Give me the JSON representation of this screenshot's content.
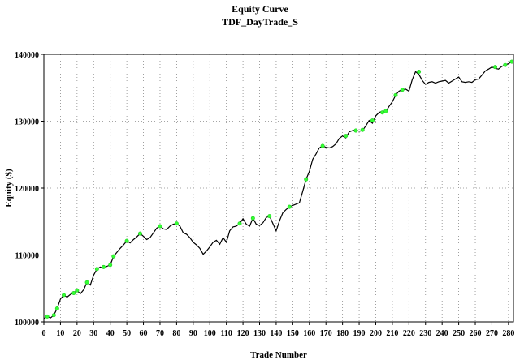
{
  "chart_data": {
    "type": "line",
    "title": "Equity Curve",
    "subtitle": "TDF_DayTrade_S",
    "xlabel": "Trade Number",
    "ylabel": "Equity ($)",
    "xlim": [
      0,
      283
    ],
    "ylim": [
      100000,
      140000
    ],
    "x_ticks": [
      0,
      10,
      20,
      30,
      40,
      50,
      60,
      70,
      80,
      90,
      100,
      110,
      120,
      130,
      140,
      150,
      160,
      170,
      180,
      190,
      200,
      210,
      220,
      230,
      240,
      250,
      260,
      270,
      280
    ],
    "y_ticks": [
      100000,
      110000,
      120000,
      130000,
      140000
    ],
    "grid": true,
    "line_color": "#000000",
    "marker_color": "#33ff33",
    "series": [
      {
        "x": [
          0,
          2,
          4,
          6,
          8,
          10,
          12,
          14,
          16,
          18,
          20,
          22,
          24,
          26,
          28,
          30,
          32,
          34,
          36,
          38,
          40,
          42,
          44,
          46,
          48,
          50,
          52,
          54,
          56,
          58,
          60,
          62,
          64,
          66,
          68,
          70,
          72,
          74,
          76,
          78,
          80,
          82,
          84,
          86,
          88,
          90,
          92,
          94,
          96,
          98,
          100,
          102,
          104,
          106,
          108,
          110,
          112,
          114,
          116,
          118,
          120,
          122,
          124,
          126,
          128,
          130,
          132,
          134,
          136,
          138,
          140,
          142,
          144,
          146,
          148,
          150,
          152,
          154,
          156,
          158,
          160,
          162,
          164,
          166,
          168,
          170,
          172,
          174,
          176,
          178,
          180,
          182,
          184,
          186,
          188,
          190,
          192,
          194,
          196,
          198,
          200,
          202,
          204,
          206,
          208,
          210,
          212,
          214,
          216,
          218,
          220,
          222,
          224,
          226,
          228,
          230,
          232,
          234,
          236,
          238,
          240,
          242,
          244,
          246,
          248,
          250,
          252,
          254,
          256,
          258,
          260,
          262,
          264,
          266,
          268,
          270,
          272,
          274,
          276,
          278,
          280,
          282
        ],
        "values": [
          100500,
          100800,
          100600,
          101000,
          102000,
          103400,
          104000,
          103700,
          104100,
          104300,
          104700,
          104200,
          104800,
          105900,
          105500,
          107000,
          107900,
          108200,
          108000,
          108300,
          108500,
          109800,
          110400,
          111000,
          111500,
          112100,
          111800,
          112300,
          112700,
          113200,
          112800,
          112300,
          112600,
          113300,
          114000,
          114300,
          113900,
          113800,
          114300,
          114600,
          114700,
          114300,
          113300,
          113100,
          112600,
          111900,
          111500,
          111000,
          110100,
          110600,
          111200,
          111900,
          112200,
          111600,
          112600,
          111900,
          113600,
          114200,
          114300,
          114700,
          115400,
          114600,
          114300,
          115500,
          114600,
          114400,
          114800,
          115600,
          115800,
          114700,
          113600,
          115100,
          116300,
          116800,
          117200,
          117400,
          117600,
          117800,
          119500,
          121300,
          122500,
          124300,
          125100,
          126000,
          126300,
          126100,
          126000,
          126200,
          126600,
          127400,
          127800,
          127500,
          128400,
          128600,
          128700,
          128500,
          128600,
          129300,
          130100,
          129700,
          130800,
          131300,
          131500,
          131400,
          132200,
          132900,
          133900,
          134500,
          134700,
          134800,
          134500,
          136200,
          137400,
          137000,
          136100,
          135500,
          135800,
          135900,
          135700,
          135900,
          136000,
          136100,
          135700,
          136000,
          136300,
          136600,
          135900,
          135800,
          135900,
          135800,
          136200,
          136300,
          136900,
          137500,
          137800,
          138100,
          137900,
          137800,
          138200,
          138400,
          138600,
          138900
        ]
      }
    ],
    "markers": {
      "x": [
        2,
        6,
        8,
        12,
        18,
        20,
        26,
        32,
        36,
        40,
        42,
        50,
        58,
        70,
        80,
        118,
        126,
        136,
        148,
        158,
        168,
        182,
        188,
        192,
        198,
        204,
        206,
        212,
        216,
        226,
        272,
        278,
        282
      ],
      "values": [
        100800,
        101000,
        102000,
        104000,
        104300,
        104700,
        105900,
        107900,
        108200,
        108500,
        109800,
        112100,
        113200,
        114300,
        114700,
        114700,
        115500,
        115800,
        117200,
        121300,
        126300,
        127800,
        128600,
        128700,
        130100,
        131300,
        131500,
        133900,
        134700,
        137400,
        138100,
        138400,
        138900
      ]
    }
  }
}
